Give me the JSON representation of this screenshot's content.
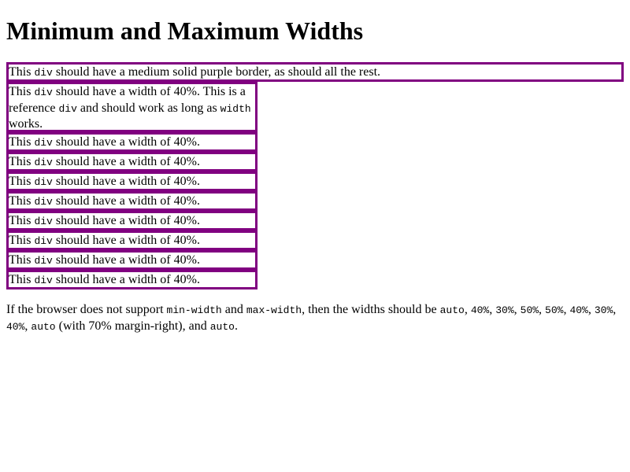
{
  "heading": "Minimum and Maximum Widths",
  "first_box": {
    "pre": "This ",
    "code": "div",
    "post": " should have a medium solid purple border, as should all the rest."
  },
  "reference_box": {
    "pre": "This ",
    "code1": "div",
    "mid1": " should have a width of 40%. This is a reference ",
    "code2": "div",
    "mid2": " and should work as long as ",
    "code3": "width",
    "post": " works."
  },
  "width_boxes": [
    {
      "pre": "This ",
      "code": "div",
      "post": " should have a width of 40%."
    },
    {
      "pre": "This ",
      "code": "div",
      "post": " should have a width of 40%."
    },
    {
      "pre": "This ",
      "code": "div",
      "post": " should have a width of 40%."
    },
    {
      "pre": "This ",
      "code": "div",
      "post": " should have a width of 40%."
    },
    {
      "pre": "This ",
      "code": "div",
      "post": " should have a width of 40%."
    },
    {
      "pre": "This ",
      "code": "div",
      "post": " should have a width of 40%."
    },
    {
      "pre": "This ",
      "code": "div",
      "post": " should have a width of 40%."
    },
    {
      "pre": "This ",
      "code": "div",
      "post": " should have a width of 40%."
    }
  ],
  "note": {
    "t1": "If the browser does not support ",
    "c1": "min-width",
    "t2": " and ",
    "c2": "max-width",
    "t3": ", then the widths should be ",
    "c3": "auto",
    "t4": ", ",
    "c4": "40%",
    "t5": ", ",
    "c5": "30%",
    "t6": ", ",
    "c6": "50%",
    "t7": ", ",
    "c7": "50%",
    "t8": ", ",
    "c8": "40%",
    "t9": ", ",
    "c9": "30%",
    "t10": ", ",
    "c10": "40%",
    "t11": ", ",
    "c11": "auto",
    "t12": " (with 70% margin-right), and ",
    "c12": "auto",
    "t13": "."
  },
  "colors": {
    "border": "#800080",
    "background": "#ffffff",
    "text": "#000000"
  }
}
